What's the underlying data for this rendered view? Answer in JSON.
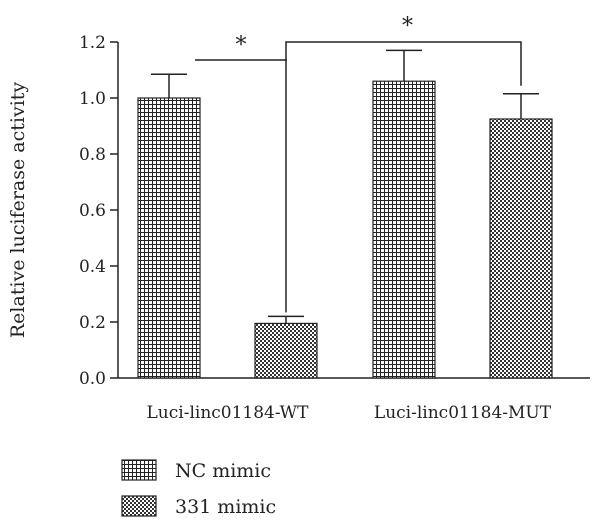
{
  "chart_data": {
    "type": "bar",
    "ylabel": "Relative luciferase activity",
    "xlabel": "",
    "ylim": [
      0,
      1.2
    ],
    "yticks": [
      "0.0",
      "0.2",
      "0.4",
      "0.6",
      "0.8",
      "1.0",
      "1.2"
    ],
    "categories": [
      "Luci-linc01184-WT",
      "Luci-linc01184-MUT"
    ],
    "series": [
      {
        "name": "NC mimic",
        "values": [
          1.0,
          1.06
        ],
        "errors": [
          0.085,
          0.11
        ],
        "pattern": "grid"
      },
      {
        "name": "331 mimic",
        "values": [
          0.195,
          0.925
        ],
        "errors": [
          0.025,
          0.09
        ],
        "pattern": "checker"
      }
    ],
    "annotations": [
      {
        "label": "*",
        "between": "NC mimic vs 331 mimic, Luci-linc01184-WT"
      },
      {
        "label": "*",
        "between": "331 mimic WT vs 331 mimic MUT"
      }
    ],
    "legend_position": "bottom-left",
    "grid": false
  }
}
